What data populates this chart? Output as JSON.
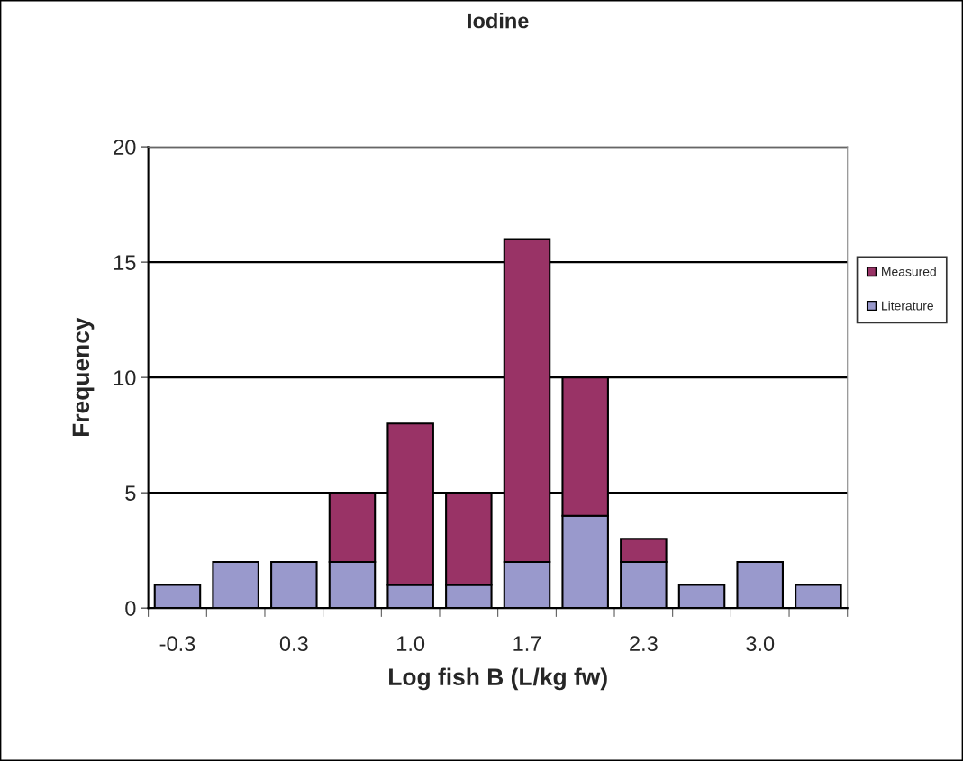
{
  "chart_data": {
    "type": "bar",
    "title": "Iodine",
    "xlabel": "Log fish B (L/kg fw)",
    "ylabel": "Frequency",
    "categories": [
      "-0.3",
      null,
      "0.3",
      null,
      "1.0",
      null,
      "1.7",
      null,
      "2.3",
      null,
      "3.0",
      null
    ],
    "stacked": true,
    "series": [
      {
        "name": "Literature",
        "color": "#9999cc",
        "values": [
          1,
          2,
          2,
          2,
          1,
          1,
          2,
          4,
          2,
          1,
          2,
          1
        ]
      },
      {
        "name": "Measured",
        "color": "#993366",
        "values": [
          null,
          null,
          null,
          3,
          7,
          4,
          14,
          6,
          1,
          null,
          null,
          null
        ]
      }
    ],
    "ylim": [
      0,
      20
    ],
    "yticks": [
      0,
      5,
      10,
      15,
      20
    ],
    "grid": "y",
    "legend": "right"
  }
}
